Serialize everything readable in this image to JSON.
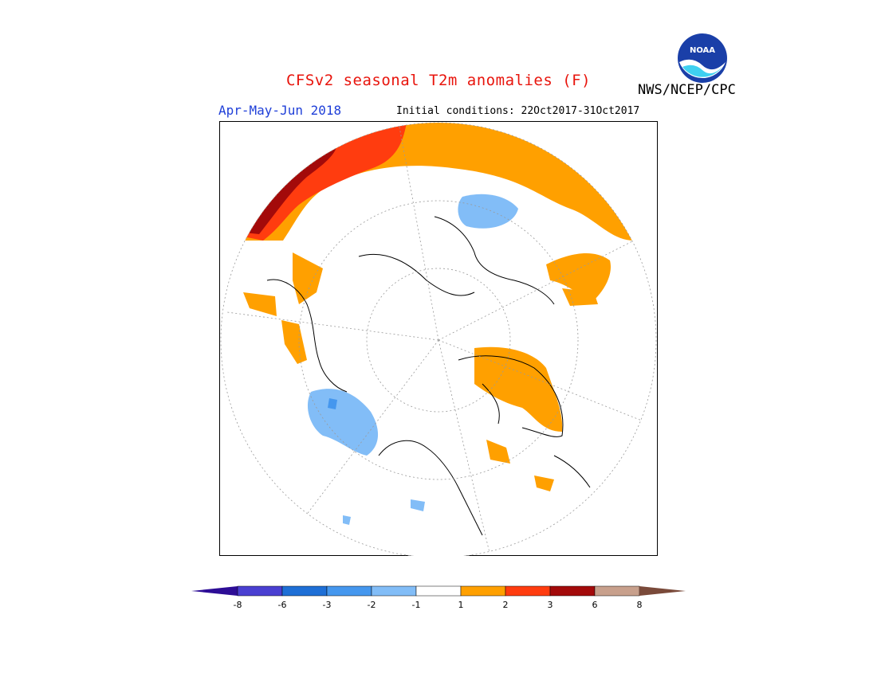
{
  "header": {
    "title": "CFSv2 seasonal T2m anomalies (F)",
    "agency": "NWS/NCEP/CPC",
    "period": "Apr-May-Jun 2018",
    "initial_conditions": "Initial conditions: 22Oct2017-31Oct2017",
    "logo_text": "NOAA"
  },
  "colors": {
    "c_m8": "#2d0d96",
    "c_m6": "#4a3fd1",
    "c_m3": "#1e6fd6",
    "c_m2": "#4597ee",
    "c_m1": "#82bdf7",
    "c_0": "#ffffff",
    "c_p1": "#ffa000",
    "c_p2": "#ff3c0f",
    "c_p3": "#a30a0a",
    "c_p6": "#c8a08c",
    "c_p8": "#7a4a3a"
  },
  "colorbar": {
    "ticks": [
      "-8",
      "-6",
      "-3",
      "-2",
      "-1",
      "1",
      "2",
      "3",
      "6",
      "8"
    ]
  }
}
